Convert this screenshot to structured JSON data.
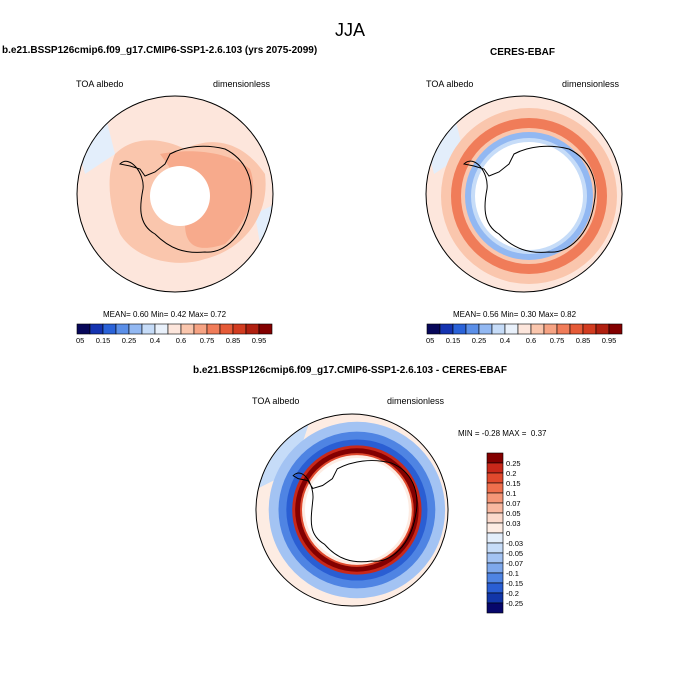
{
  "page_title": "JJA",
  "panels": [
    {
      "title": "b.e21.BSSP126cmip6.f09_g17.CMIP6-SSP1-2.6.103 (yrs 2075-2099)",
      "left_label": "TOA albedo",
      "right_label": "dimensionless",
      "stats": {
        "mean_label": "MEAN=",
        "mean": "0.60",
        "min_label": "Min=",
        "min": "0.42",
        "max_label": "Max=",
        "max": "0.72"
      }
    },
    {
      "title": "CERES-EBAF",
      "left_label": "TOA albedo",
      "right_label": "dimensionless",
      "stats": {
        "mean_label": "MEAN=",
        "mean": "0.56",
        "min_label": "Min=",
        "min": "0.30",
        "max_label": "Max=",
        "max": "0.82"
      }
    },
    {
      "title": "b.e21.BSSP126cmip6.f09_g17.CMIP6-SSP1-2.6.103 - CERES-EBAF",
      "left_label": "TOA albedo",
      "right_label": "dimensionless",
      "stats_text": "MIN = -0.28 MAX =  0.37"
    }
  ],
  "colorbar_abs": {
    "colors": [
      "#08085a",
      "#1433b0",
      "#2a62d8",
      "#5b8fe8",
      "#92b8f2",
      "#c6dcf8",
      "#e9f1fb",
      "#fde6dc",
      "#fac6ad",
      "#f6a383",
      "#f07c59",
      "#e55a37",
      "#d23c20",
      "#b02010",
      "#830000"
    ],
    "labels": [
      "0.05",
      "0.15",
      "0.25",
      "0.4",
      "0.6",
      "0.75",
      "0.85",
      "0.95"
    ]
  },
  "colorbar_diff": {
    "colors": [
      "#830000",
      "#c8281a",
      "#e0492d",
      "#ef6f4d",
      "#f59677",
      "#f9b8a0",
      "#fbd9cb",
      "#fdece3",
      "#e3eefb",
      "#c6dcf8",
      "#a3c3f3",
      "#7ea8ec",
      "#4f84e3",
      "#2a5ed3",
      "#1236a8",
      "#07076b"
    ],
    "labels": [
      "0.25",
      "0.2",
      "0.15",
      "0.1",
      "0.07",
      "0.05",
      "0.03",
      "0",
      "-0.03",
      "-0.05",
      "-0.07",
      "-0.1",
      "-0.15",
      "-0.2",
      "-0.25"
    ]
  }
}
